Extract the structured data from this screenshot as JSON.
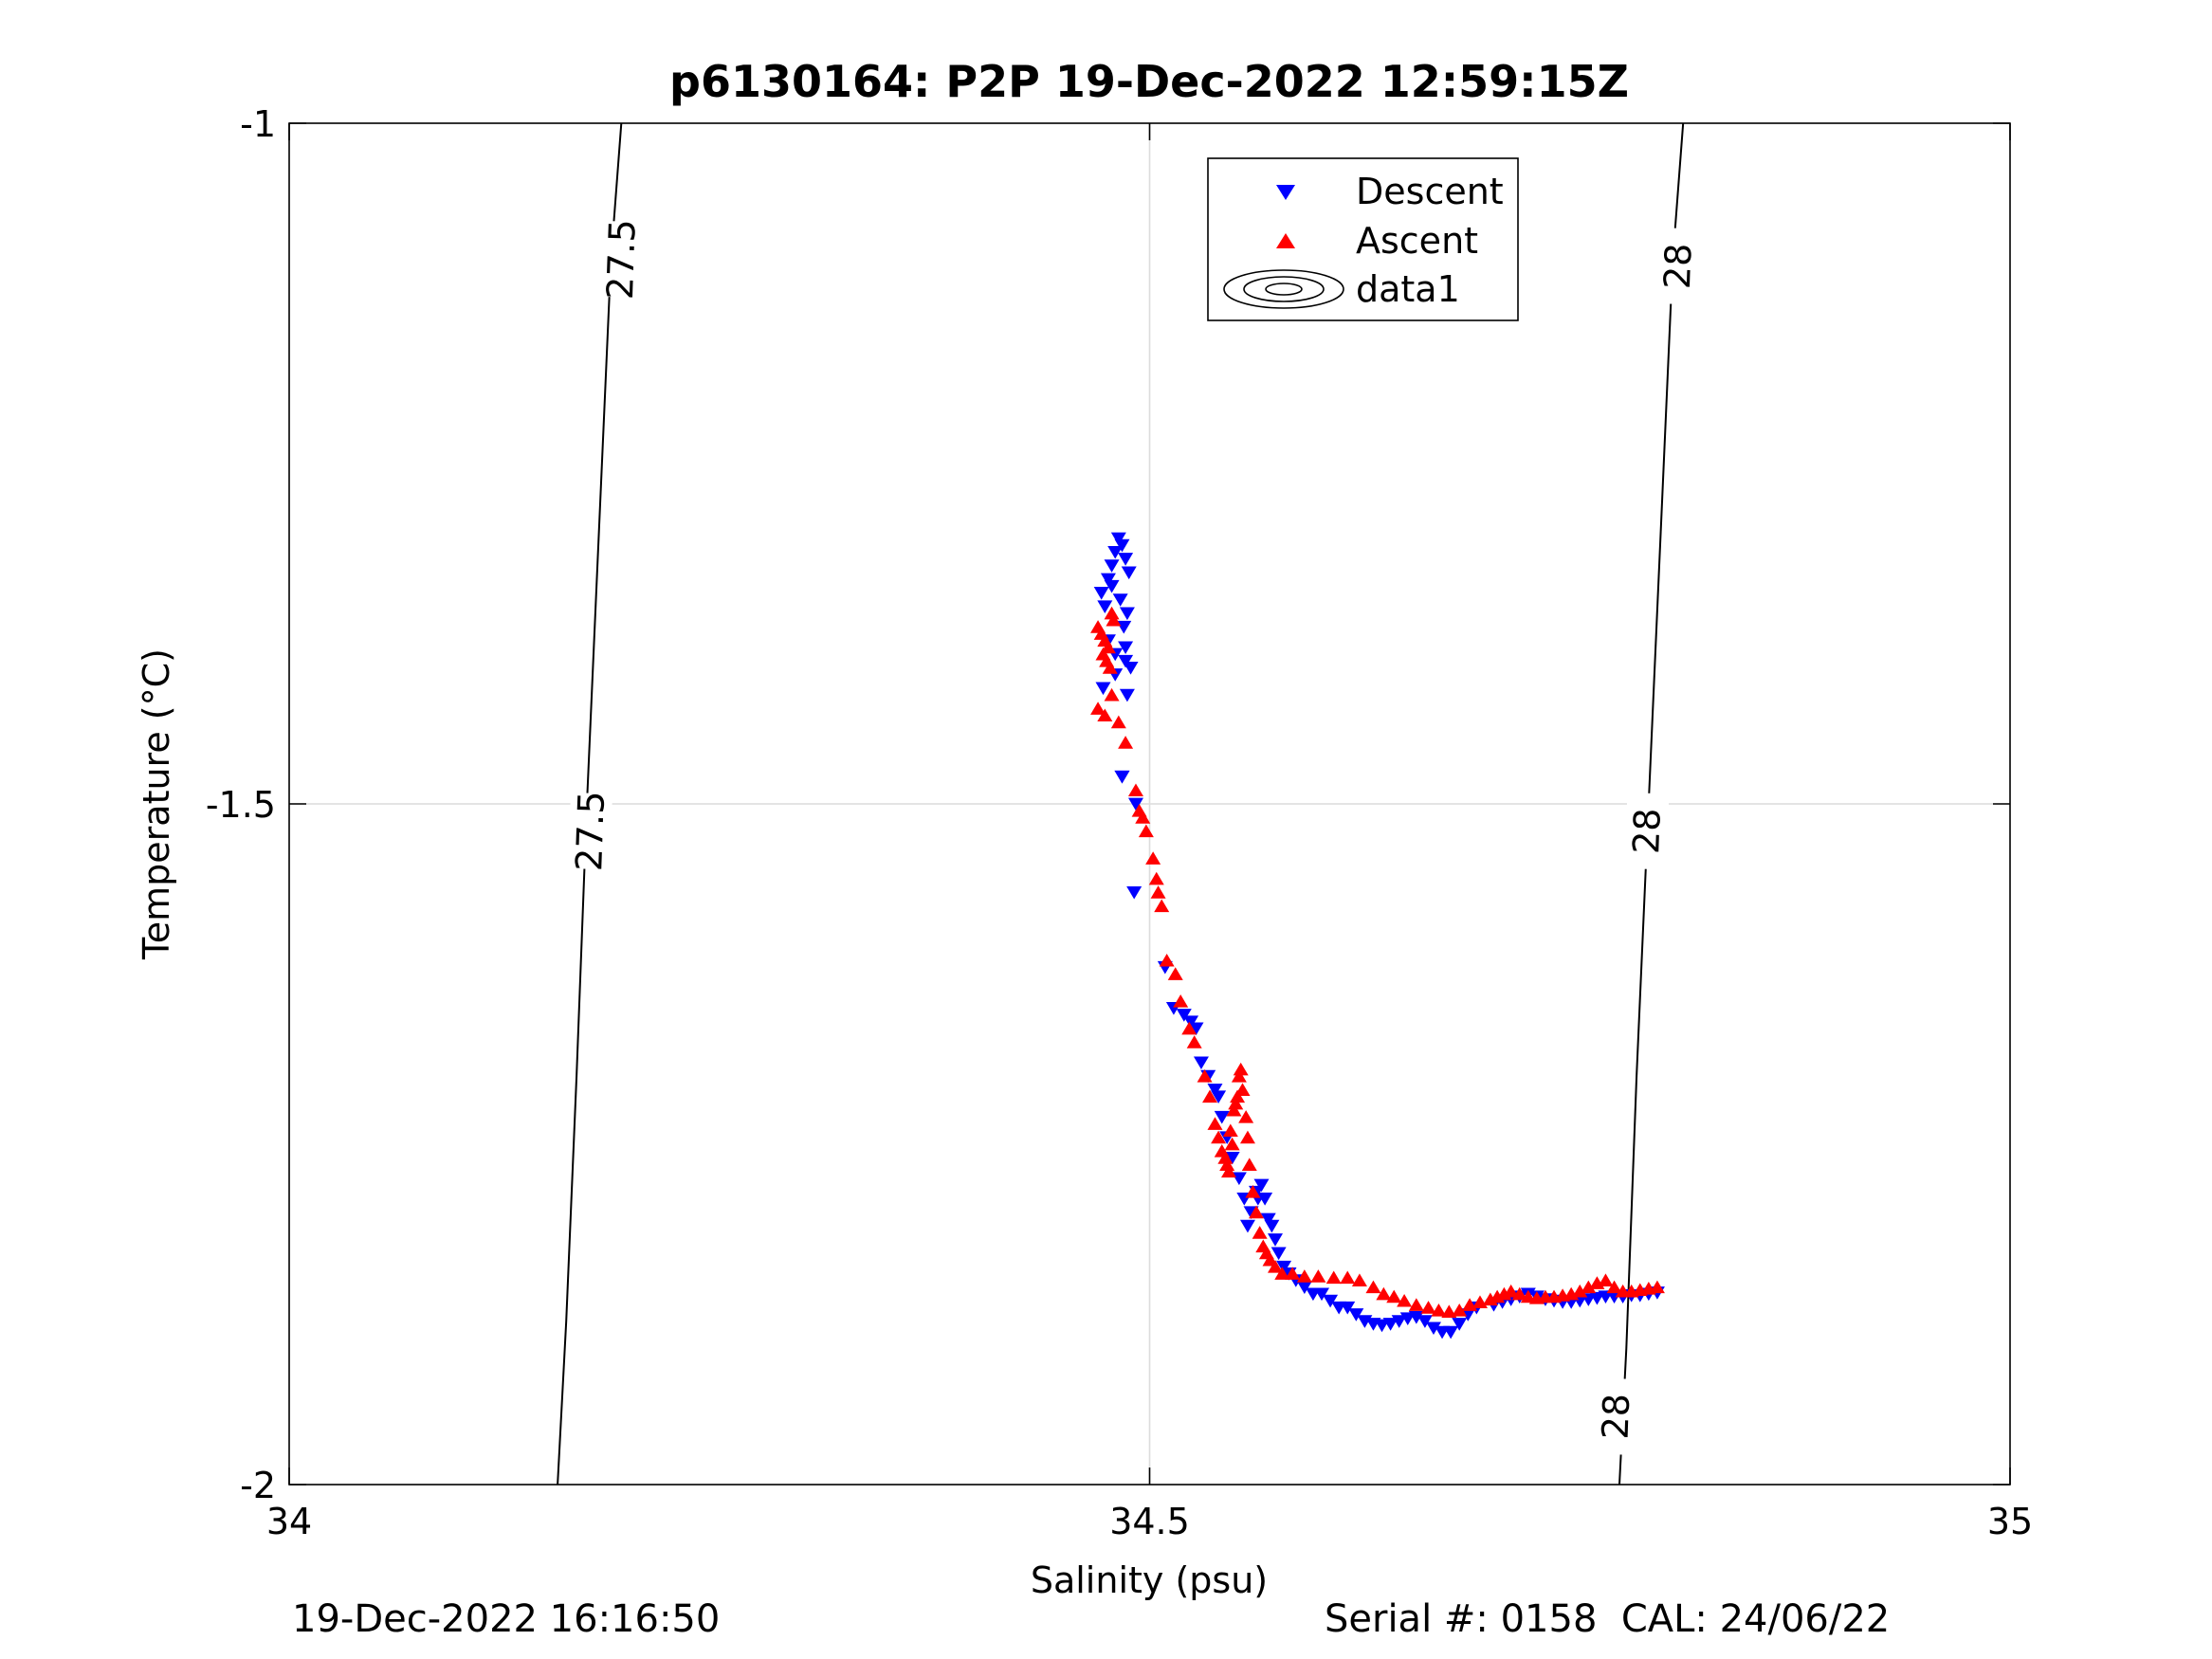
{
  "chart_data": {
    "type": "scatter",
    "title": "p6130164: P2P 19-Dec-2022 12:59:15Z",
    "xlabel": "Salinity (psu)",
    "ylabel": "Temperature (°C)",
    "xlim": [
      34,
      35
    ],
    "ylim": [
      -2,
      -1
    ],
    "xticks": [
      34,
      34.5,
      35
    ],
    "xtick_labels": [
      "34",
      "34.5",
      "35"
    ],
    "yticks": [
      -2,
      -1.5,
      -1
    ],
    "ytick_labels": [
      "-2",
      "-1.5",
      "-1"
    ],
    "grid": true,
    "legend_position": "top-center",
    "legend": [
      "Descent",
      "Ascent",
      "data1"
    ],
    "contours": [
      {
        "label": "27.5",
        "points": [
          [
            34.156,
            -2.0
          ],
          [
            34.161,
            -1.88
          ],
          [
            34.167,
            -1.7
          ],
          [
            34.173,
            -1.5
          ],
          [
            34.18,
            -1.3
          ],
          [
            34.187,
            -1.1
          ],
          [
            34.193,
            -1.0
          ]
        ],
        "labels_at": [
          [
            34.175,
            -1.52
          ],
          [
            34.193,
            -1.1
          ]
        ]
      },
      {
        "label": "28",
        "points": [
          [
            34.773,
            -2.0
          ],
          [
            34.777,
            -1.9
          ],
          [
            34.783,
            -1.7
          ],
          [
            34.79,
            -1.5
          ],
          [
            34.797,
            -1.3
          ],
          [
            34.804,
            -1.1
          ],
          [
            34.81,
            -1.0
          ]
        ],
        "labels_at": [
          [
            34.771,
            -1.95
          ],
          [
            34.789,
            -1.52
          ],
          [
            34.807,
            -1.105
          ]
        ]
      }
    ],
    "series": [
      {
        "name": "Descent",
        "color": "#0000ff",
        "marker": "triangle-down",
        "x": [
          34.472,
          34.474,
          34.476,
          34.478,
          34.48,
          34.482,
          34.484,
          34.486,
          34.488,
          34.478,
          34.483,
          34.487,
          34.485,
          34.476,
          34.486,
          34.48,
          34.486,
          34.489,
          34.48,
          34.473,
          34.484,
          34.487,
          34.492,
          34.484,
          34.491,
          34.509,
          34.514,
          34.52,
          34.524,
          34.527,
          34.53,
          34.534,
          34.538,
          34.54,
          34.542,
          34.545,
          34.548,
          34.552,
          34.555,
          34.557,
          34.559,
          34.562,
          34.563,
          34.565,
          34.567,
          34.569,
          34.571,
          34.573,
          34.575,
          34.578,
          34.581,
          34.585,
          34.59,
          34.595,
          34.6,
          34.605,
          34.61,
          34.615,
          34.62,
          34.625,
          34.63,
          34.635,
          34.64,
          34.645,
          34.65,
          34.655,
          34.66,
          34.665,
          34.67,
          34.675,
          34.68,
          34.685,
          34.69,
          34.7,
          34.705,
          34.71,
          34.715,
          34.72,
          34.725,
          34.73,
          34.735,
          34.74,
          34.745,
          34.75,
          34.755,
          34.76,
          34.765,
          34.77,
          34.775,
          34.78,
          34.785,
          34.79,
          34.795
        ],
        "y": [
          -1.345,
          -1.355,
          -1.335,
          -1.325,
          -1.315,
          -1.305,
          -1.31,
          -1.32,
          -1.33,
          -1.34,
          -1.35,
          -1.36,
          -1.37,
          -1.38,
          -1.385,
          -1.39,
          -1.395,
          -1.4,
          -1.405,
          -1.415,
          -1.48,
          -1.42,
          -1.5,
          -1.48,
          -1.565,
          -1.62,
          -1.65,
          -1.655,
          -1.66,
          -1.665,
          -1.69,
          -1.7,
          -1.71,
          -1.715,
          -1.73,
          -1.745,
          -1.76,
          -1.775,
          -1.79,
          -1.81,
          -1.8,
          -1.785,
          -1.79,
          -1.78,
          -1.79,
          -1.805,
          -1.81,
          -1.82,
          -1.83,
          -1.84,
          -1.845,
          -1.85,
          -1.855,
          -1.86,
          -1.86,
          -1.865,
          -1.87,
          -1.87,
          -1.875,
          -1.88,
          -1.882,
          -1.883,
          -1.882,
          -1.88,
          -1.878,
          -1.877,
          -1.88,
          -1.885,
          -1.888,
          -1.888,
          -1.882,
          -1.875,
          -1.87,
          -1.868,
          -1.866,
          -1.864,
          -1.862,
          -1.86,
          -1.862,
          -1.864,
          -1.865,
          -1.866,
          -1.866,
          -1.865,
          -1.864,
          -1.863,
          -1.862,
          -1.862,
          -1.862,
          -1.861,
          -1.861,
          -1.86,
          -1.859
        ]
      },
      {
        "name": "Ascent",
        "color": "#ff0000",
        "marker": "triangle-up",
        "x": [
          34.47,
          34.472,
          34.474,
          34.476,
          34.473,
          34.475,
          34.477,
          34.478,
          34.479,
          34.47,
          34.474,
          34.478,
          34.482,
          34.486,
          34.492,
          34.494,
          34.496,
          34.498,
          34.502,
          34.504,
          34.505,
          34.507,
          34.51,
          34.515,
          34.518,
          34.523,
          34.526,
          34.532,
          34.535,
          34.538,
          34.54,
          34.542,
          34.544,
          34.545,
          34.546,
          34.547,
          34.548,
          34.549,
          34.55,
          34.551,
          34.552,
          34.553,
          34.554,
          34.556,
          34.557,
          34.558,
          34.56,
          34.562,
          34.564,
          34.566,
          34.568,
          34.57,
          34.573,
          34.577,
          34.583,
          34.59,
          34.598,
          34.607,
          34.615,
          34.622,
          34.63,
          34.636,
          34.642,
          34.648,
          34.655,
          34.662,
          34.668,
          34.674,
          34.68,
          34.686,
          34.692,
          34.698,
          34.702,
          34.706,
          34.71,
          34.715,
          34.72,
          34.725,
          34.73,
          34.735,
          34.74,
          34.745,
          34.75,
          34.755,
          34.76,
          34.765,
          34.77,
          34.775,
          34.78,
          34.785,
          34.79,
          34.795
        ],
        "y": [
          -1.37,
          -1.375,
          -1.38,
          -1.385,
          -1.39,
          -1.395,
          -1.4,
          -1.36,
          -1.365,
          -1.43,
          -1.435,
          -1.42,
          -1.44,
          -1.455,
          -1.49,
          -1.505,
          -1.51,
          -1.52,
          -1.54,
          -1.555,
          -1.565,
          -1.575,
          -1.615,
          -1.625,
          -1.645,
          -1.665,
          -1.675,
          -1.7,
          -1.715,
          -1.735,
          -1.745,
          -1.755,
          -1.76,
          -1.765,
          -1.77,
          -1.74,
          -1.75,
          -1.725,
          -1.72,
          -1.715,
          -1.7,
          -1.695,
          -1.71,
          -1.73,
          -1.745,
          -1.765,
          -1.785,
          -1.8,
          -1.815,
          -1.825,
          -1.83,
          -1.835,
          -1.84,
          -1.845,
          -1.845,
          -1.847,
          -1.847,
          -1.848,
          -1.848,
          -1.85,
          -1.855,
          -1.86,
          -1.862,
          -1.865,
          -1.868,
          -1.87,
          -1.872,
          -1.873,
          -1.872,
          -1.868,
          -1.866,
          -1.864,
          -1.862,
          -1.86,
          -1.858,
          -1.86,
          -1.862,
          -1.863,
          -1.862,
          -1.862,
          -1.861,
          -1.86,
          -1.858,
          -1.855,
          -1.852,
          -1.85,
          -1.855,
          -1.858,
          -1.858,
          -1.857,
          -1.856,
          -1.855
        ]
      }
    ]
  },
  "footer": {
    "timestamp": "19-Dec-2022 16:16:50",
    "serial": "Serial #: 0158  CAL: 24/06/22"
  }
}
